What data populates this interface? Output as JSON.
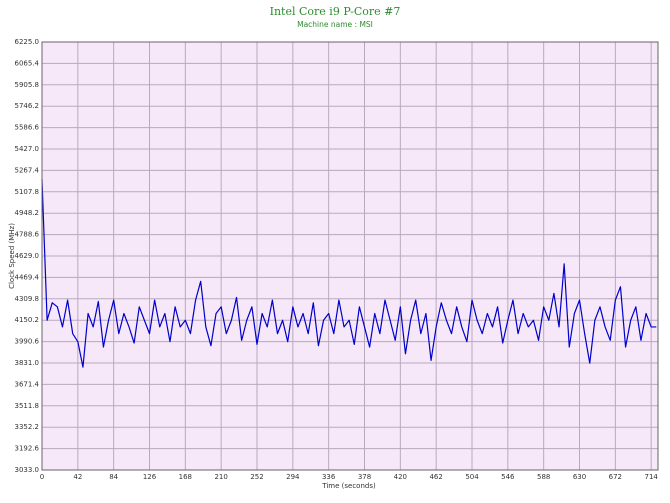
{
  "chart_data": {
    "type": "line",
    "title": "Intel Core i9 P-Core #7",
    "subtitle": "Machine name : MSI",
    "x_label": "Time (seconds)",
    "y_label": "Clock Speed (MHz)",
    "background": "#f7e8f9",
    "grid": true,
    "xlim": [
      0,
      722
    ],
    "ylim": [
      3033,
      6225
    ],
    "xticks": [
      0,
      42,
      84,
      126,
      168,
      210,
      252,
      294,
      336,
      378,
      420,
      462,
      504,
      546,
      588,
      630,
      672,
      714
    ],
    "yticks": [
      {
        "value": 3033,
        "label": "3033.0"
      },
      3192.6,
      3352.2,
      3511.8,
      3671.4,
      {
        "value": 3831,
        "label": "3831.0"
      },
      3990.6,
      4150.2,
      4309.8,
      4469.4,
      {
        "value": 4629,
        "label": "4629.0"
      },
      4788.6,
      4948.2,
      5107.8,
      5267.4,
      {
        "value": 5427,
        "label": "5427.0"
      },
      5586.6,
      5746.2,
      5905.8,
      6065.4,
      {
        "value": 6225,
        "label": "6225.0"
      }
    ],
    "x": [
      0,
      6,
      12,
      18,
      24,
      30,
      36,
      42,
      48,
      54,
      60,
      66,
      72,
      78,
      84,
      90,
      96,
      102,
      108,
      114,
      120,
      126,
      132,
      138,
      144,
      150,
      156,
      162,
      168,
      174,
      180,
      186,
      192,
      198,
      204,
      210,
      216,
      222,
      228,
      234,
      240,
      246,
      252,
      258,
      264,
      270,
      276,
      282,
      288,
      294,
      300,
      306,
      312,
      318,
      324,
      330,
      336,
      342,
      348,
      354,
      360,
      366,
      372,
      378,
      384,
      390,
      396,
      402,
      408,
      414,
      420,
      426,
      432,
      438,
      444,
      450,
      456,
      462,
      468,
      474,
      480,
      486,
      492,
      498,
      504,
      510,
      516,
      522,
      528,
      534,
      540,
      546,
      552,
      558,
      564,
      570,
      576,
      582,
      588,
      594,
      600,
      606,
      612,
      618,
      624,
      630,
      636,
      642,
      648,
      654,
      660,
      666,
      672,
      678,
      684,
      690,
      696,
      702,
      708,
      714,
      720
    ],
    "series": [
      {
        "name": "Clock Speed",
        "color": "#0000cc",
        "values": [
          5200,
          4150,
          4280,
          4250,
          4100,
          4300,
          4050,
          3990,
          3800,
          4200,
          4100,
          4290,
          3950,
          4150,
          4300,
          4050,
          4200,
          4100,
          3980,
          4250,
          4150,
          4050,
          4300,
          4100,
          4200,
          3990,
          4250,
          4100,
          4150,
          4050,
          4300,
          4440,
          4100,
          3960,
          4200,
          4250,
          4050,
          4150,
          4320,
          4000,
          4150,
          4250,
          3970,
          4200,
          4100,
          4300,
          4050,
          4150,
          3990,
          4250,
          4100,
          4200,
          4050,
          4280,
          3960,
          4150,
          4200,
          4050,
          4300,
          4100,
          4150,
          3970,
          4250,
          4100,
          3950,
          4200,
          4050,
          4300,
          4150,
          4000,
          4250,
          3900,
          4150,
          4300,
          4050,
          4200,
          3850,
          4100,
          4280,
          4150,
          4050,
          4250,
          4100,
          3990,
          4300,
          4150,
          4050,
          4200,
          4100,
          4250,
          3980,
          4150,
          4300,
          4050,
          4200,
          4100,
          4150,
          4000,
          4250,
          4150,
          4350,
          4100,
          4570,
          3950,
          4200,
          4300,
          4050,
          3830,
          4150,
          4250,
          4100,
          4000,
          4300,
          4400,
          3950,
          4150,
          4250,
          4000,
          4200,
          4100,
          4100
        ]
      }
    ]
  }
}
